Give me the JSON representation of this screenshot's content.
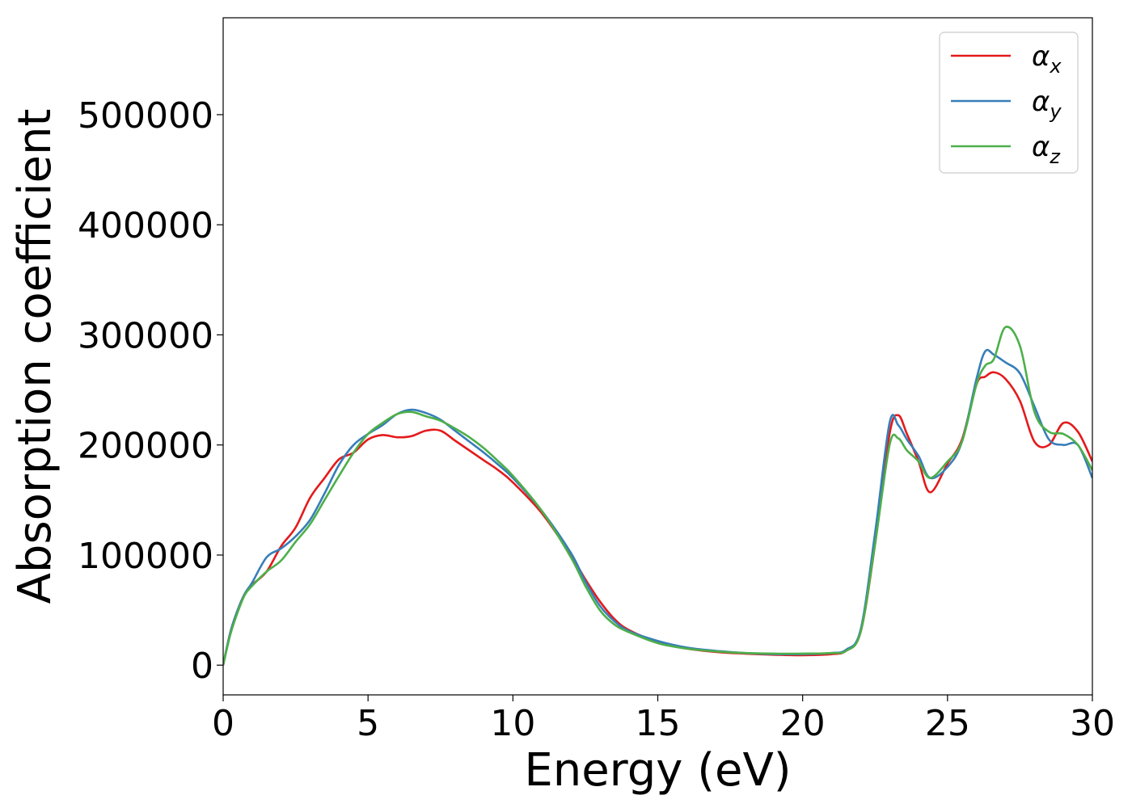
{
  "chart_data": {
    "type": "line",
    "title": "",
    "xlabel": "Energy (eV)",
    "ylabel": "Absorption coefficient",
    "xlim": [
      0,
      30
    ],
    "ylim": [
      -27000,
      588000
    ],
    "xticks": [
      "0",
      "5",
      "10",
      "15",
      "20",
      "25",
      "30"
    ],
    "yticks": [
      "0",
      "100000",
      "200000",
      "300000",
      "400000",
      "500000"
    ],
    "grid": false,
    "legend_position": "top-right",
    "series": [
      {
        "name": "αx",
        "symbol": "α",
        "subscript": "x",
        "color": "#e41a1c",
        "x": [
          0,
          0.25,
          0.5,
          0.75,
          1,
          1.5,
          2,
          2.5,
          3,
          3.5,
          4,
          4.5,
          5,
          5.5,
          6,
          6.5,
          7,
          7.5,
          8,
          8.5,
          9,
          9.5,
          10,
          11,
          12,
          12.5,
          13,
          13.5,
          14,
          15,
          16,
          17,
          18,
          19,
          20,
          21,
          21.5,
          22,
          22.5,
          23,
          23.3,
          23.6,
          24,
          24.4,
          25,
          25.5,
          26,
          26.3,
          26.6,
          27,
          27.5,
          28,
          28.5,
          29,
          29.5,
          30
        ],
        "y": [
          0,
          30000,
          50000,
          65000,
          73000,
          85000,
          108000,
          125000,
          152000,
          170000,
          187000,
          193000,
          205000,
          209000,
          207000,
          208000,
          213000,
          213000,
          204000,
          195000,
          186000,
          177000,
          166000,
          138000,
          100000,
          78000,
          58000,
          42000,
          32000,
          21000,
          15000,
          12000,
          10500,
          9500,
          9000,
          10000,
          13000,
          30000,
          110000,
          210000,
          227000,
          210000,
          185000,
          157000,
          183000,
          205000,
          255000,
          262000,
          266000,
          260000,
          240000,
          203000,
          200000,
          220000,
          212000,
          185000
        ]
      },
      {
        "name": "αy",
        "symbol": "α",
        "subscript": "y",
        "color": "#377eb8",
        "x": [
          0,
          0.25,
          0.5,
          0.75,
          1,
          1.5,
          2,
          2.5,
          3,
          3.5,
          4,
          4.5,
          5,
          5.5,
          6,
          6.5,
          7,
          7.5,
          8,
          8.5,
          9,
          9.5,
          10,
          11,
          12,
          12.5,
          13,
          13.5,
          14,
          15,
          16,
          17,
          18,
          19,
          20,
          21,
          21.5,
          22,
          22.5,
          23,
          23.3,
          23.6,
          24,
          24.4,
          25,
          25.5,
          26,
          26.3,
          26.6,
          27,
          27.5,
          28,
          28.5,
          29,
          29.5,
          30
        ],
        "y": [
          0,
          30000,
          50000,
          65000,
          75000,
          98000,
          106000,
          117000,
          132000,
          156000,
          182000,
          200000,
          210000,
          218000,
          228000,
          232000,
          229000,
          223000,
          213000,
          203000,
          193000,
          182000,
          170000,
          140000,
          102000,
          76000,
          54000,
          40000,
          31000,
          22000,
          16000,
          13000,
          11000,
          10000,
          10000,
          11000,
          14000,
          32000,
          120000,
          220000,
          218000,
          205000,
          190000,
          170000,
          180000,
          203000,
          260000,
          285000,
          282000,
          275000,
          265000,
          235000,
          205000,
          200000,
          200000,
          170000
        ]
      },
      {
        "name": "αz",
        "symbol": "α",
        "subscript": "z",
        "color": "#4daf4a",
        "x": [
          0,
          0.25,
          0.5,
          0.75,
          1,
          1.5,
          2,
          2.5,
          3,
          3.5,
          4,
          4.5,
          5,
          5.5,
          6,
          6.5,
          7,
          7.5,
          8,
          8.5,
          9,
          9.5,
          10,
          11,
          12,
          12.5,
          13,
          13.5,
          14,
          15,
          16,
          17,
          18,
          19,
          20,
          21,
          21.5,
          22,
          22.5,
          23,
          23.3,
          23.6,
          24,
          24.4,
          25,
          25.5,
          26,
          26.3,
          26.6,
          27,
          27.5,
          28,
          28.5,
          29,
          29.5,
          30
        ],
        "y": [
          0,
          28000,
          48000,
          64000,
          72000,
          85000,
          95000,
          112000,
          128000,
          150000,
          172000,
          193000,
          210000,
          220000,
          228000,
          230000,
          226000,
          222000,
          215000,
          207000,
          197000,
          185000,
          172000,
          140000,
          98000,
          72000,
          50000,
          37000,
          30000,
          20000,
          15000,
          12500,
          11000,
          10500,
          10500,
          11000,
          13000,
          30000,
          110000,
          200000,
          206000,
          195000,
          185000,
          170000,
          185000,
          203000,
          255000,
          272000,
          278000,
          307000,
          290000,
          230000,
          212000,
          210000,
          200000,
          177000
        ]
      }
    ]
  }
}
